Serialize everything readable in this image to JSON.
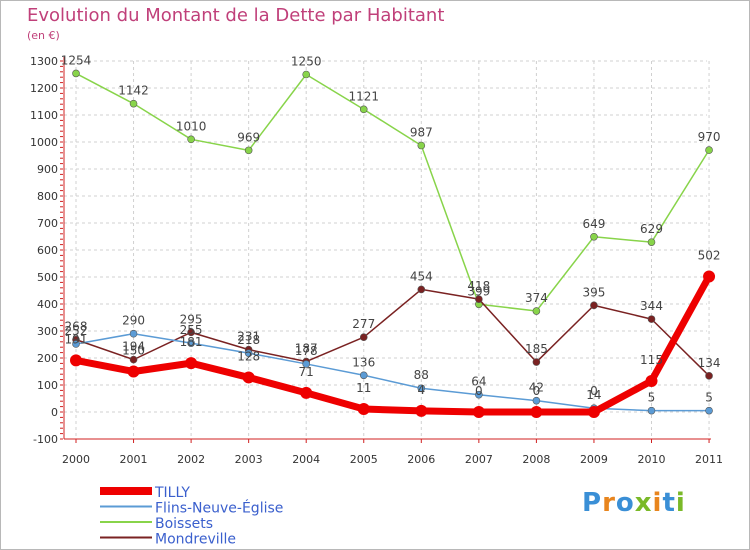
{
  "title": "Evolution du Montant de la Dette par Habitant",
  "subtitle": "(en €)",
  "logo": {
    "text": "Proxiti",
    "colors": [
      "#3a8fd6",
      "#e8851e",
      "#3a8fd6",
      "#7ab928",
      "#e8851e",
      "#3a8fd6",
      "#7ab928"
    ]
  },
  "chart_data": {
    "type": "line",
    "x": [
      "2000",
      "2001",
      "2002",
      "2003",
      "2004",
      "2005",
      "2006",
      "2007",
      "2008",
      "2009",
      "2010",
      "2011"
    ],
    "ylim": [
      -100,
      1300
    ],
    "yticks": [
      -100,
      0,
      100,
      200,
      300,
      400,
      500,
      600,
      700,
      800,
      900,
      1000,
      1100,
      1200,
      1300
    ],
    "grid": "horizontal dashed",
    "legend_position": "bottom-left",
    "series": [
      {
        "name": "Boissets",
        "color": "#88d44a",
        "values": [
          1254,
          1142,
          1010,
          969,
          1250,
          1121,
          987,
          399,
          374,
          649,
          629,
          970
        ]
      },
      {
        "name": "Mondreville",
        "color": "#7a2222",
        "values": [
          268,
          194,
          295,
          231,
          187,
          277,
          454,
          418,
          185,
          395,
          344,
          134
        ]
      },
      {
        "name": "Flins-Neuve-Église",
        "color": "#5b9bd5",
        "values": [
          252,
          290,
          255,
          218,
          178,
          136,
          88,
          64,
          42,
          14,
          5,
          5
        ]
      },
      {
        "name": "TILLY",
        "color": "#ee0000",
        "values": [
          191,
          150,
          181,
          128,
          71,
          11,
          4,
          0,
          0,
          0,
          115,
          502
        ]
      }
    ],
    "legend_order": [
      "TILLY",
      "Flins-Neuve-Église",
      "Boissets",
      "Mondreville"
    ]
  }
}
